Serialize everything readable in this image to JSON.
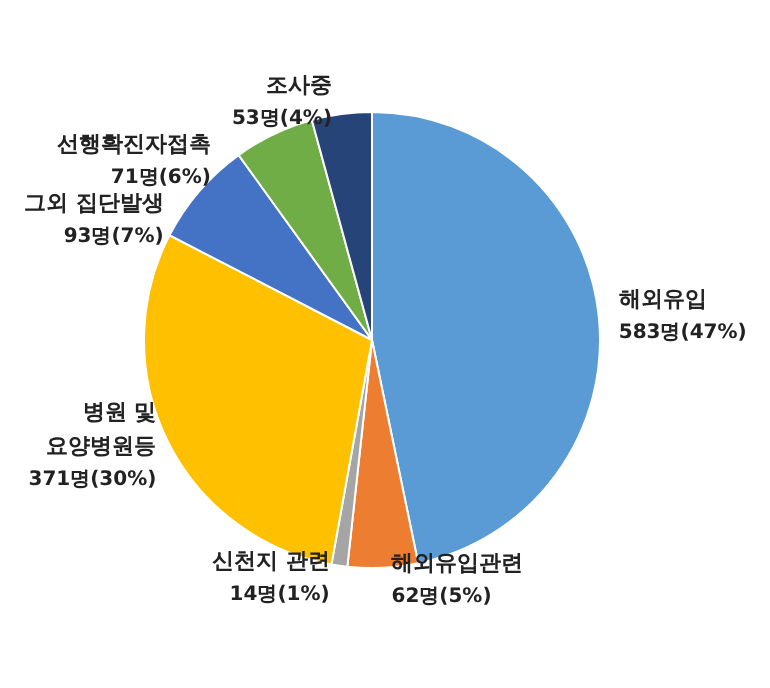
{
  "chart_data": {
    "type": "pie",
    "categories": [
      "해외유입",
      "해외유입관련",
      "신천지 관련",
      "병원 및\n요양병원등",
      "그외 집단발생",
      "선행확진자접촉",
      "조사중"
    ],
    "values": [
      583,
      62,
      14,
      371,
      93,
      71,
      53
    ],
    "value_labels": [
      "583명(47%)",
      "62명(5%)",
      "14명(1%)",
      "371명(30%)",
      "93명(7%)",
      "71명(6%)",
      "53명(4%)"
    ],
    "colors": [
      "#5b9bd5",
      "#ed7d31",
      "#a5a5a5",
      "#ffc000",
      "#4472c4",
      "#70ad47",
      "#264478"
    ],
    "legend": false
  }
}
